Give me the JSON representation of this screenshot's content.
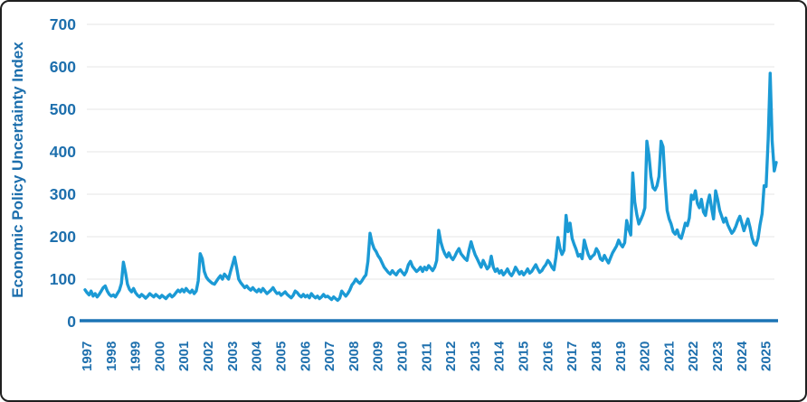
{
  "frame": {
    "background_color": "#ffffff",
    "border_color": "#1f1f1f"
  },
  "chart_data": {
    "type": "line",
    "title": "",
    "xlabel": "",
    "ylabel": "Economic Policy Uncertainty Index",
    "ylim": [
      0,
      700
    ],
    "y_ticks": [
      0,
      100,
      200,
      300,
      400,
      500,
      600,
      700
    ],
    "x_tick_labels": [
      "1997",
      "1998",
      "1999",
      "2000",
      "2001",
      "2002",
      "2003",
      "2004",
      "2005",
      "2006",
      "2007",
      "2008",
      "2009",
      "2010",
      "2011",
      "2012",
      "2013",
      "2014",
      "2015",
      "2016",
      "2017",
      "2018",
      "2019",
      "2020",
      "2021",
      "2022",
      "2023",
      "2024",
      "2025"
    ],
    "grid": "horizontal-light",
    "legend_position": "none",
    "colors": {
      "line": "#1B9AD5",
      "axis_line": "#1C74B5",
      "tick_label": "#1D6FAD",
      "gridline": "#E9E9E9"
    },
    "series": [
      {
        "name": "Economic Policy Uncertainty Index",
        "frequency": "monthly",
        "start": "1997-01",
        "end": "2025-07",
        "values": [
          75,
          68,
          63,
          72,
          60,
          66,
          58,
          64,
          72,
          80,
          84,
          72,
          64,
          60,
          63,
          58,
          66,
          74,
          90,
          140,
          116,
          88,
          76,
          70,
          78,
          68,
          62,
          58,
          64,
          60,
          55,
          60,
          66,
          62,
          58,
          64,
          60,
          56,
          62,
          58,
          54,
          60,
          64,
          58,
          62,
          68,
          74,
          70,
          76,
          70,
          78,
          72,
          68,
          74,
          66,
          72,
          96,
          160,
          148,
          118,
          105,
          98,
          94,
          90,
          88,
          95,
          102,
          108,
          100,
          112,
          106,
          100,
          118,
          135,
          152,
          128,
          100,
          92,
          86,
          80,
          84,
          78,
          74,
          80,
          74,
          70,
          76,
          70,
          78,
          72,
          66,
          70,
          74,
          80,
          72,
          66,
          68,
          62,
          66,
          70,
          64,
          60,
          56,
          62,
          72,
          68,
          62,
          58,
          64,
          58,
          62,
          56,
          66,
          60,
          56,
          60,
          54,
          58,
          64,
          58,
          60,
          56,
          52,
          58,
          54,
          50,
          55,
          72,
          66,
          60,
          66,
          74,
          86,
          92,
          100,
          94,
          90,
          96,
          104,
          110,
          142,
          208,
          186,
          172,
          165,
          155,
          148,
          138,
          128,
          122,
          116,
          112,
          120,
          114,
          110,
          118,
          122,
          116,
          110,
          118,
          134,
          142,
          130,
          124,
          118,
          122,
          128,
          118,
          128,
          122,
          132,
          126,
          120,
          128,
          144,
          215,
          188,
          172,
          160,
          152,
          162,
          152,
          146,
          154,
          164,
          172,
          160,
          154,
          148,
          144,
          168,
          188,
          172,
          158,
          148,
          138,
          128,
          144,
          134,
          124,
          130,
          154,
          128,
          118,
          124,
          114,
          120,
          110,
          116,
          124,
          114,
          108,
          116,
          128,
          120,
          112,
          118,
          110,
          116,
          124,
          114,
          118,
          126,
          134,
          124,
          116,
          120,
          128,
          134,
          144,
          138,
          128,
          122,
          152,
          198,
          172,
          158,
          168,
          250,
          212,
          232,
          196,
          182,
          170,
          154,
          158,
          148,
          192,
          174,
          158,
          148,
          154,
          158,
          172,
          164,
          148,
          144,
          156,
          146,
          138,
          150,
          162,
          170,
          178,
          192,
          182,
          176,
          186,
          238,
          218,
          204,
          350,
          282,
          252,
          230,
          240,
          252,
          268,
          425,
          392,
          342,
          316,
          310,
          320,
          342,
          425,
          412,
          330,
          262,
          242,
          230,
          212,
          206,
          216,
          200,
          196,
          212,
          232,
          226,
          244,
          298,
          288,
          308,
          278,
          268,
          288,
          258,
          250,
          278,
          298,
          268,
          242,
          308,
          288,
          262,
          248,
          234,
          244,
          228,
          218,
          208,
          214,
          224,
          238,
          248,
          232,
          214,
          228,
          242,
          222,
          198,
          184,
          180,
          196,
          228,
          254,
          320,
          318,
          430,
          585,
          425,
          355,
          375
        ]
      }
    ]
  }
}
